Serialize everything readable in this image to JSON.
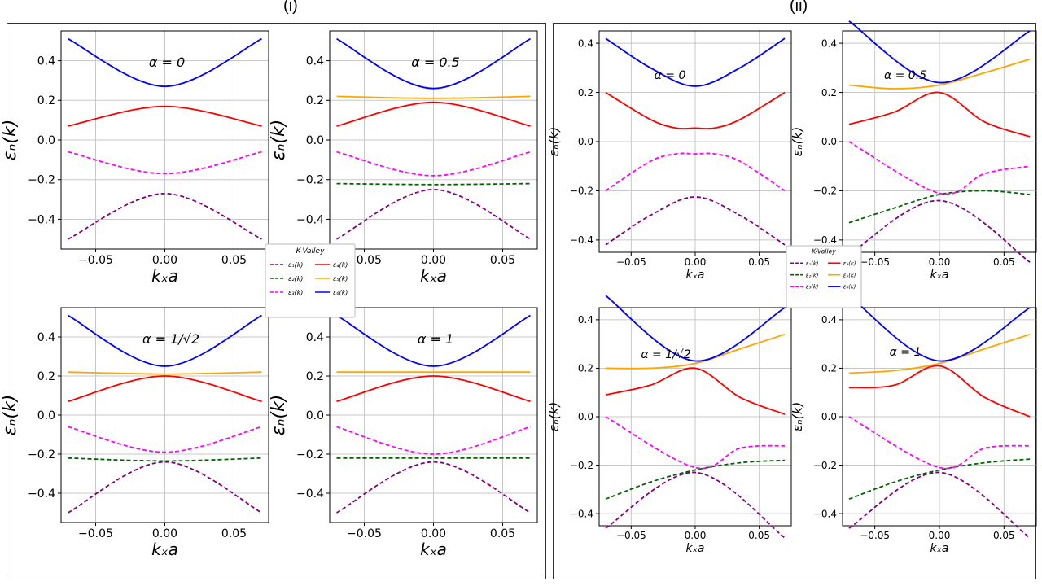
{
  "panels": {
    "left_label": "(i)",
    "right_label": "(ii)"
  },
  "legend": {
    "title": "K-Valley",
    "entries": [
      {
        "label": "ε₁(k)",
        "color": "#800080",
        "dash": true
      },
      {
        "label": "ε₂(k)",
        "color": "#006400",
        "dash": true
      },
      {
        "label": "ε₃(k)",
        "color": "#ff00ff",
        "dash": true
      },
      {
        "label": "ε₄(k)",
        "color": "#ff0000",
        "dash": false
      },
      {
        "label": "ε₅(k)",
        "color": "#ffa500",
        "dash": false
      },
      {
        "label": "ε₆(k)",
        "color": "#0000ff",
        "dash": false
      }
    ]
  },
  "chart_data": [
    {
      "type": "line",
      "panel": "i",
      "annotation": "α = 0",
      "xlabel": "kₓa",
      "ylabel": "εₙ(k)",
      "xlim": [
        -0.075,
        0.075
      ],
      "ylim": [
        -0.55,
        0.55
      ],
      "xticks": [
        -0.05,
        0.0,
        0.05
      ],
      "xtick_labels": [
        "−0.05",
        "0.00",
        "0.05"
      ],
      "yticks": [
        -0.4,
        -0.2,
        0.0,
        0.2,
        0.4
      ],
      "ytick_labels": [
        "−0.4",
        "−0.2",
        "0.0",
        "0.2",
        "0.4"
      ],
      "series": [
        {
          "name": "ε₁(k)",
          "x": [
            -0.07,
            0,
            0.07
          ],
          "y": [
            -0.5,
            -0.27,
            -0.5
          ]
        },
        {
          "name": "ε₃(k)",
          "x": [
            -0.07,
            0,
            0.07
          ],
          "y": [
            -0.06,
            -0.17,
            -0.06
          ]
        },
        {
          "name": "ε₄(k)",
          "x": [
            -0.07,
            0,
            0.07
          ],
          "y": [
            0.07,
            0.17,
            0.07
          ]
        },
        {
          "name": "ε₆(k)",
          "x": [
            -0.07,
            0,
            0.07
          ],
          "y": [
            0.51,
            0.27,
            0.51
          ]
        }
      ]
    },
    {
      "type": "line",
      "panel": "i",
      "annotation": "α = 0.5",
      "xlabel": "kₓa",
      "ylabel": "εₙ(k)",
      "xlim": [
        -0.075,
        0.075
      ],
      "ylim": [
        -0.55,
        0.55
      ],
      "xticks": [
        -0.05,
        0.0,
        0.05
      ],
      "xtick_labels": [
        "−0.05",
        "0.00",
        "0.05"
      ],
      "yticks": [
        -0.4,
        -0.2,
        0.0,
        0.2,
        0.4
      ],
      "ytick_labels": [
        "−0.4",
        "−0.2",
        "0.0",
        "0.2",
        "0.4"
      ],
      "series": [
        {
          "name": "ε₁(k)",
          "x": [
            -0.07,
            0,
            0.07
          ],
          "y": [
            -0.5,
            -0.25,
            -0.5
          ]
        },
        {
          "name": "ε₂(k)",
          "x": [
            -0.07,
            0,
            0.07
          ],
          "y": [
            -0.22,
            -0.225,
            -0.22
          ]
        },
        {
          "name": "ε₃(k)",
          "x": [
            -0.07,
            0,
            0.07
          ],
          "y": [
            -0.06,
            -0.18,
            -0.06
          ]
        },
        {
          "name": "ε₄(k)",
          "x": [
            -0.07,
            0,
            0.07
          ],
          "y": [
            0.07,
            0.19,
            0.07
          ]
        },
        {
          "name": "ε₅(k)",
          "x": [
            -0.07,
            0,
            0.07
          ],
          "y": [
            0.22,
            0.21,
            0.22
          ]
        },
        {
          "name": "ε₆(k)",
          "x": [
            -0.07,
            0,
            0.07
          ],
          "y": [
            0.51,
            0.26,
            0.51
          ]
        }
      ]
    },
    {
      "type": "line",
      "panel": "i",
      "annotation": "α = 1/√2",
      "xlabel": "kₓa",
      "ylabel": "εₙ(k)",
      "xlim": [
        -0.075,
        0.075
      ],
      "ylim": [
        -0.55,
        0.55
      ],
      "xticks": [
        -0.05,
        0.0,
        0.05
      ],
      "xtick_labels": [
        "−0.05",
        "0.00",
        "0.05"
      ],
      "yticks": [
        -0.4,
        -0.2,
        0.0,
        0.2,
        0.4
      ],
      "ytick_labels": [
        "−0.4",
        "−0.2",
        "0.0",
        "0.2",
        "0.4"
      ],
      "series": [
        {
          "name": "ε₁(k)",
          "x": [
            -0.07,
            0,
            0.07
          ],
          "y": [
            -0.5,
            -0.24,
            -0.5
          ]
        },
        {
          "name": "ε₂(k)",
          "x": [
            -0.07,
            0,
            0.07
          ],
          "y": [
            -0.22,
            -0.235,
            -0.22
          ]
        },
        {
          "name": "ε₃(k)",
          "x": [
            -0.07,
            0,
            0.07
          ],
          "y": [
            -0.06,
            -0.19,
            -0.06
          ]
        },
        {
          "name": "ε₄(k)",
          "x": [
            -0.07,
            0,
            0.07
          ],
          "y": [
            0.07,
            0.2,
            0.07
          ]
        },
        {
          "name": "ε₅(k)",
          "x": [
            -0.07,
            0,
            0.07
          ],
          "y": [
            0.22,
            0.21,
            0.22
          ]
        },
        {
          "name": "ε₆(k)",
          "x": [
            -0.07,
            0,
            0.07
          ],
          "y": [
            0.51,
            0.25,
            0.51
          ]
        }
      ]
    },
    {
      "type": "line",
      "panel": "i",
      "annotation": "α = 1",
      "xlabel": "kₓa",
      "ylabel": "εₙ(k)",
      "xlim": [
        -0.075,
        0.075
      ],
      "ylim": [
        -0.55,
        0.55
      ],
      "xticks": [
        -0.05,
        0.0,
        0.05
      ],
      "xtick_labels": [
        "−0.05",
        "0.00",
        "0.05"
      ],
      "yticks": [
        -0.4,
        -0.2,
        0.0,
        0.2,
        0.4
      ],
      "ytick_labels": [
        "−0.4",
        "−0.2",
        "0.0",
        "0.2",
        "0.4"
      ],
      "series": [
        {
          "name": "ε₁(k)",
          "x": [
            -0.07,
            0,
            0.07
          ],
          "y": [
            -0.5,
            -0.24,
            -0.5
          ]
        },
        {
          "name": "ε₂(k)",
          "x": [
            -0.07,
            0,
            0.07
          ],
          "y": [
            -0.22,
            -0.22,
            -0.22
          ]
        },
        {
          "name": "ε₃(k)",
          "x": [
            -0.07,
            0,
            0.07
          ],
          "y": [
            -0.06,
            -0.2,
            -0.06
          ]
        },
        {
          "name": "ε₄(k)",
          "x": [
            -0.07,
            0,
            0.07
          ],
          "y": [
            0.07,
            0.2,
            0.07
          ]
        },
        {
          "name": "ε₅(k)",
          "x": [
            -0.07,
            0,
            0.07
          ],
          "y": [
            0.22,
            0.22,
            0.22
          ]
        },
        {
          "name": "ε₆(k)",
          "x": [
            -0.07,
            0,
            0.07
          ],
          "y": [
            0.51,
            0.25,
            0.51
          ]
        }
      ]
    },
    {
      "type": "line",
      "panel": "ii",
      "annotation": "α = 0",
      "xlabel": "kₓa",
      "ylabel": "εₙ(k)",
      "xlim": [
        -0.075,
        0.075
      ],
      "ylim": [
        -0.45,
        0.45
      ],
      "xticks": [
        -0.05,
        0.0,
        0.05
      ],
      "xtick_labels": [
        "−0.05",
        "0.00",
        "0.05"
      ],
      "yticks": [
        -0.4,
        -0.2,
        0.0,
        0.2,
        0.4
      ],
      "ytick_labels": [
        "−0.4",
        "−0.2",
        "0.0",
        "0.2",
        "0.4"
      ],
      "series": [
        {
          "name": "ε₁(k)",
          "x": [
            -0.07,
            -0.035,
            0,
            0.035,
            0.07
          ],
          "y": [
            -0.42,
            -0.3,
            -0.225,
            -0.3,
            -0.42
          ]
        },
        {
          "name": "ε₃(k)",
          "x": [
            -0.07,
            -0.035,
            -0.015,
            0,
            0.015,
            0.035,
            0.07
          ],
          "y": [
            -0.2,
            -0.08,
            -0.05,
            -0.05,
            -0.05,
            -0.08,
            -0.2
          ]
        },
        {
          "name": "ε₄(k)",
          "x": [
            -0.07,
            -0.035,
            -0.015,
            0,
            0.015,
            0.035,
            0.07
          ],
          "y": [
            0.2,
            0.09,
            0.055,
            0.055,
            0.055,
            0.09,
            0.2
          ]
        },
        {
          "name": "ε₆(k)",
          "x": [
            -0.07,
            -0.035,
            0,
            0.035,
            0.07
          ],
          "y": [
            0.42,
            0.3,
            0.225,
            0.3,
            0.42
          ]
        }
      ]
    },
    {
      "type": "line",
      "panel": "ii",
      "annotation": "α = 0.5",
      "xlabel": "kₓa",
      "ylabel": "εₙ(k)",
      "xlim": [
        -0.075,
        0.075
      ],
      "ylim": [
        -0.45,
        0.45
      ],
      "xticks": [
        -0.05,
        0.0,
        0.05
      ],
      "xtick_labels": [
        "−0.05",
        "0.00",
        "0.05"
      ],
      "yticks": [
        -0.4,
        -0.2,
        0.0,
        0.2,
        0.4
      ],
      "ytick_labels": [
        "−0.4",
        "−0.2",
        "0.0",
        "0.2",
        "0.4"
      ],
      "series": [
        {
          "name": "ε₁(k)",
          "x": [
            -0.07,
            0,
            0.07
          ],
          "y": [
            -0.46,
            -0.24,
            -0.49
          ]
        },
        {
          "name": "ε₂(k)",
          "x": [
            -0.07,
            -0.035,
            0,
            0.035,
            0.07
          ],
          "y": [
            -0.33,
            -0.27,
            -0.215,
            -0.2,
            -0.215
          ]
        },
        {
          "name": "ε₃(k)",
          "x": [
            -0.07,
            0,
            0.035,
            0.07
          ],
          "y": [
            0.0,
            -0.21,
            -0.13,
            -0.1
          ]
        },
        {
          "name": "ε₄(k)",
          "x": [
            -0.07,
            -0.035,
            0,
            0.035,
            0.07
          ],
          "y": [
            0.07,
            0.12,
            0.2,
            0.08,
            0.02
          ]
        },
        {
          "name": "ε₅(k)",
          "x": [
            -0.07,
            -0.035,
            0,
            0.035,
            0.07
          ],
          "y": [
            0.23,
            0.215,
            0.23,
            0.28,
            0.335
          ]
        },
        {
          "name": "ε₆(k)",
          "x": [
            -0.07,
            0,
            0.07
          ],
          "y": [
            0.49,
            0.24,
            0.45
          ]
        }
      ]
    },
    {
      "type": "line",
      "panel": "ii",
      "annotation": "α = 1/√2",
      "xlabel": "kₓa",
      "ylabel": "εₙ(k)",
      "xlim": [
        -0.075,
        0.075
      ],
      "ylim": [
        -0.45,
        0.45
      ],
      "xticks": [
        -0.05,
        0.0,
        0.05
      ],
      "xtick_labels": [
        "−0.05",
        "0.00",
        "0.05"
      ],
      "yticks": [
        -0.4,
        -0.2,
        0.0,
        0.2,
        0.4
      ],
      "ytick_labels": [
        "−0.4",
        "−0.2",
        "0.0",
        "0.2",
        "0.4"
      ],
      "series": [
        {
          "name": "ε₁(k)",
          "x": [
            -0.07,
            0,
            0.07
          ],
          "y": [
            -0.46,
            -0.23,
            -0.5
          ]
        },
        {
          "name": "ε₂(k)",
          "x": [
            -0.07,
            -0.035,
            0,
            0.035,
            0.07
          ],
          "y": [
            -0.34,
            -0.27,
            -0.22,
            -0.19,
            -0.18
          ]
        },
        {
          "name": "ε₃(k)",
          "x": [
            -0.07,
            0,
            0.035,
            0.07
          ],
          "y": [
            0.0,
            -0.21,
            -0.13,
            -0.12
          ]
        },
        {
          "name": "ε₄(k)",
          "x": [
            -0.07,
            -0.035,
            0,
            0.035,
            0.07
          ],
          "y": [
            0.09,
            0.13,
            0.2,
            0.08,
            0.01
          ]
        },
        {
          "name": "ε₅(k)",
          "x": [
            -0.07,
            -0.035,
            0,
            0.035,
            0.07
          ],
          "y": [
            0.2,
            0.2,
            0.22,
            0.28,
            0.34
          ]
        },
        {
          "name": "ε₆(k)",
          "x": [
            -0.07,
            0,
            0.07
          ],
          "y": [
            0.5,
            0.23,
            0.45
          ]
        }
      ]
    },
    {
      "type": "line",
      "panel": "ii",
      "annotation": "α = 1",
      "xlabel": "kₓa",
      "ylabel": "εₙ(k)",
      "xlim": [
        -0.075,
        0.075
      ],
      "ylim": [
        -0.45,
        0.45
      ],
      "xticks": [
        -0.05,
        0.0,
        0.05
      ],
      "xtick_labels": [
        "−0.05",
        "0.00",
        "0.05"
      ],
      "yticks": [
        -0.4,
        -0.2,
        0.0,
        0.2,
        0.4
      ],
      "ytick_labels": [
        "−0.4",
        "−0.2",
        "0.0",
        "0.2",
        "0.4"
      ],
      "series": [
        {
          "name": "ε₁(k)",
          "x": [
            -0.07,
            0,
            0.07
          ],
          "y": [
            -0.46,
            -0.23,
            -0.5
          ]
        },
        {
          "name": "ε₂(k)",
          "x": [
            -0.07,
            -0.035,
            0,
            0.035,
            0.07
          ],
          "y": [
            -0.34,
            -0.27,
            -0.22,
            -0.19,
            -0.175
          ]
        },
        {
          "name": "ε₃(k)",
          "x": [
            -0.07,
            0,
            0.035,
            0.07
          ],
          "y": [
            0.0,
            -0.21,
            -0.13,
            -0.12
          ]
        },
        {
          "name": "ε₄(k)",
          "x": [
            -0.07,
            -0.035,
            0,
            0.035,
            0.07
          ],
          "y": [
            0.12,
            0.13,
            0.21,
            0.08,
            0.0
          ]
        },
        {
          "name": "ε₅(k)",
          "x": [
            -0.07,
            -0.035,
            0,
            0.035,
            0.07
          ],
          "y": [
            0.18,
            0.19,
            0.22,
            0.28,
            0.34
          ]
        },
        {
          "name": "ε₆(k)",
          "x": [
            -0.07,
            0,
            0.07
          ],
          "y": [
            0.5,
            0.23,
            0.45
          ]
        }
      ]
    }
  ]
}
